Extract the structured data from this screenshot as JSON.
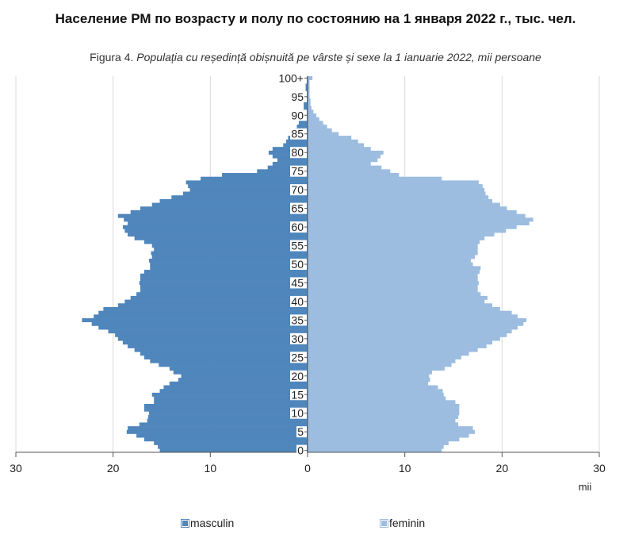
{
  "header": {
    "title": "Население РМ по возрасту и полу по состоянию на 1 января 2022 г., тыс. чел.",
    "subtitle_lead": "Figura 4.",
    "subtitle_rest": "Populația cu reședință obișnuită pe vârste și sexe la 1 ianuarie 2022, mii persoane"
  },
  "colors": {
    "male": "#4f86bc",
    "female": "#9dbde0",
    "axis": "#555555",
    "grid": "#d9d9d9"
  },
  "chart_data": {
    "type": "bar",
    "orientation": "horizontal-pyramid",
    "xunit": "mii",
    "xlim": [
      -30,
      30
    ],
    "x_ticks": [
      -30,
      -20,
      -10,
      0,
      10,
      20,
      30
    ],
    "x_tick_labels": [
      "30",
      "20",
      "10",
      "0",
      "10",
      "20",
      "30"
    ],
    "y_tick_labels": [
      "0",
      "5",
      "10",
      "15",
      "20",
      "25",
      "30",
      "35",
      "40",
      "45",
      "50",
      "55",
      "60",
      "65",
      "70",
      "75",
      "80",
      "85",
      "90",
      "95",
      "100+"
    ],
    "grid": true,
    "legend_position": "bottom",
    "ages": [
      0,
      1,
      2,
      3,
      4,
      5,
      6,
      7,
      8,
      9,
      10,
      11,
      12,
      13,
      14,
      15,
      16,
      17,
      18,
      19,
      20,
      21,
      22,
      23,
      24,
      25,
      26,
      27,
      28,
      29,
      30,
      31,
      32,
      33,
      34,
      35,
      36,
      37,
      38,
      39,
      40,
      41,
      42,
      43,
      44,
      45,
      46,
      47,
      48,
      49,
      50,
      51,
      52,
      53,
      54,
      55,
      56,
      57,
      58,
      59,
      60,
      61,
      62,
      63,
      64,
      65,
      66,
      67,
      68,
      69,
      70,
      71,
      72,
      73,
      74,
      75,
      76,
      77,
      78,
      79,
      80,
      81,
      82,
      83,
      84,
      85,
      86,
      87,
      88,
      89,
      90,
      91,
      92,
      93,
      94,
      95,
      96,
      97,
      98,
      99,
      100
    ],
    "series": [
      {
        "name": "masculin",
        "values": [
          15.2,
          15.4,
          15.8,
          16.8,
          17.6,
          18.6,
          18.5,
          17.3,
          16.5,
          16.4,
          16.3,
          16.8,
          16.8,
          15.8,
          15.8,
          16.0,
          15.2,
          14.8,
          14.2,
          13.3,
          13.0,
          13.8,
          14.2,
          15.3,
          16.2,
          16.8,
          17.2,
          17.8,
          18.5,
          19.0,
          19.5,
          19.8,
          20.5,
          21.5,
          22.2,
          23.2,
          22.0,
          21.5,
          21.0,
          19.5,
          18.8,
          18.2,
          17.6,
          17.2,
          17.2,
          17.3,
          17.2,
          17.2,
          16.8,
          16.2,
          16.2,
          16.3,
          16.0,
          16.1,
          15.8,
          16.0,
          16.8,
          17.8,
          18.5,
          18.8,
          19.0,
          18.5,
          18.9,
          19.5,
          18.2,
          17.2,
          16.0,
          15.2,
          14.0,
          12.8,
          12.1,
          12.3,
          12.5,
          11.0,
          8.8,
          5.2,
          4.1,
          3.6,
          3.1,
          3.6,
          4.0,
          3.6,
          2.5,
          2.2,
          2.0,
          1.6,
          1.4,
          1.1,
          0.9,
          0.8,
          0.6,
          0.5,
          0.4,
          0.4,
          0.3,
          0.3,
          0.2,
          0.2,
          0.2,
          0.2,
          0.3
        ]
      },
      {
        "name": "feminin",
        "values": [
          13.8,
          14.0,
          14.5,
          15.6,
          16.6,
          17.2,
          17.0,
          15.5,
          15.2,
          15.5,
          15.6,
          15.6,
          15.6,
          15.2,
          14.2,
          14.0,
          13.9,
          13.4,
          12.4,
          12.6,
          12.5,
          12.8,
          14.1,
          14.8,
          15.2,
          15.8,
          16.6,
          17.5,
          18.4,
          19.0,
          19.8,
          20.5,
          21.0,
          21.6,
          22.2,
          22.5,
          21.6,
          21.0,
          19.8,
          19.0,
          18.2,
          18.5,
          17.8,
          17.5,
          17.5,
          17.6,
          17.5,
          17.5,
          17.7,
          17.8,
          17.0,
          16.8,
          17.2,
          17.5,
          17.5,
          17.5,
          17.7,
          18.2,
          19.2,
          20.4,
          21.5,
          22.8,
          23.2,
          22.4,
          21.5,
          20.5,
          19.8,
          19.0,
          18.6,
          18.3,
          18.2,
          18.0,
          17.6,
          13.8,
          9.4,
          8.5,
          7.6,
          6.5,
          7.2,
          7.5,
          7.8,
          6.5,
          5.8,
          5.2,
          4.5,
          3.2,
          2.5,
          2.0,
          1.6,
          1.2,
          0.9,
          0.6,
          0.4,
          0.3,
          0.3,
          0.2,
          0.2,
          0.2,
          0.2,
          0.2,
          0.5
        ]
      }
    ]
  }
}
